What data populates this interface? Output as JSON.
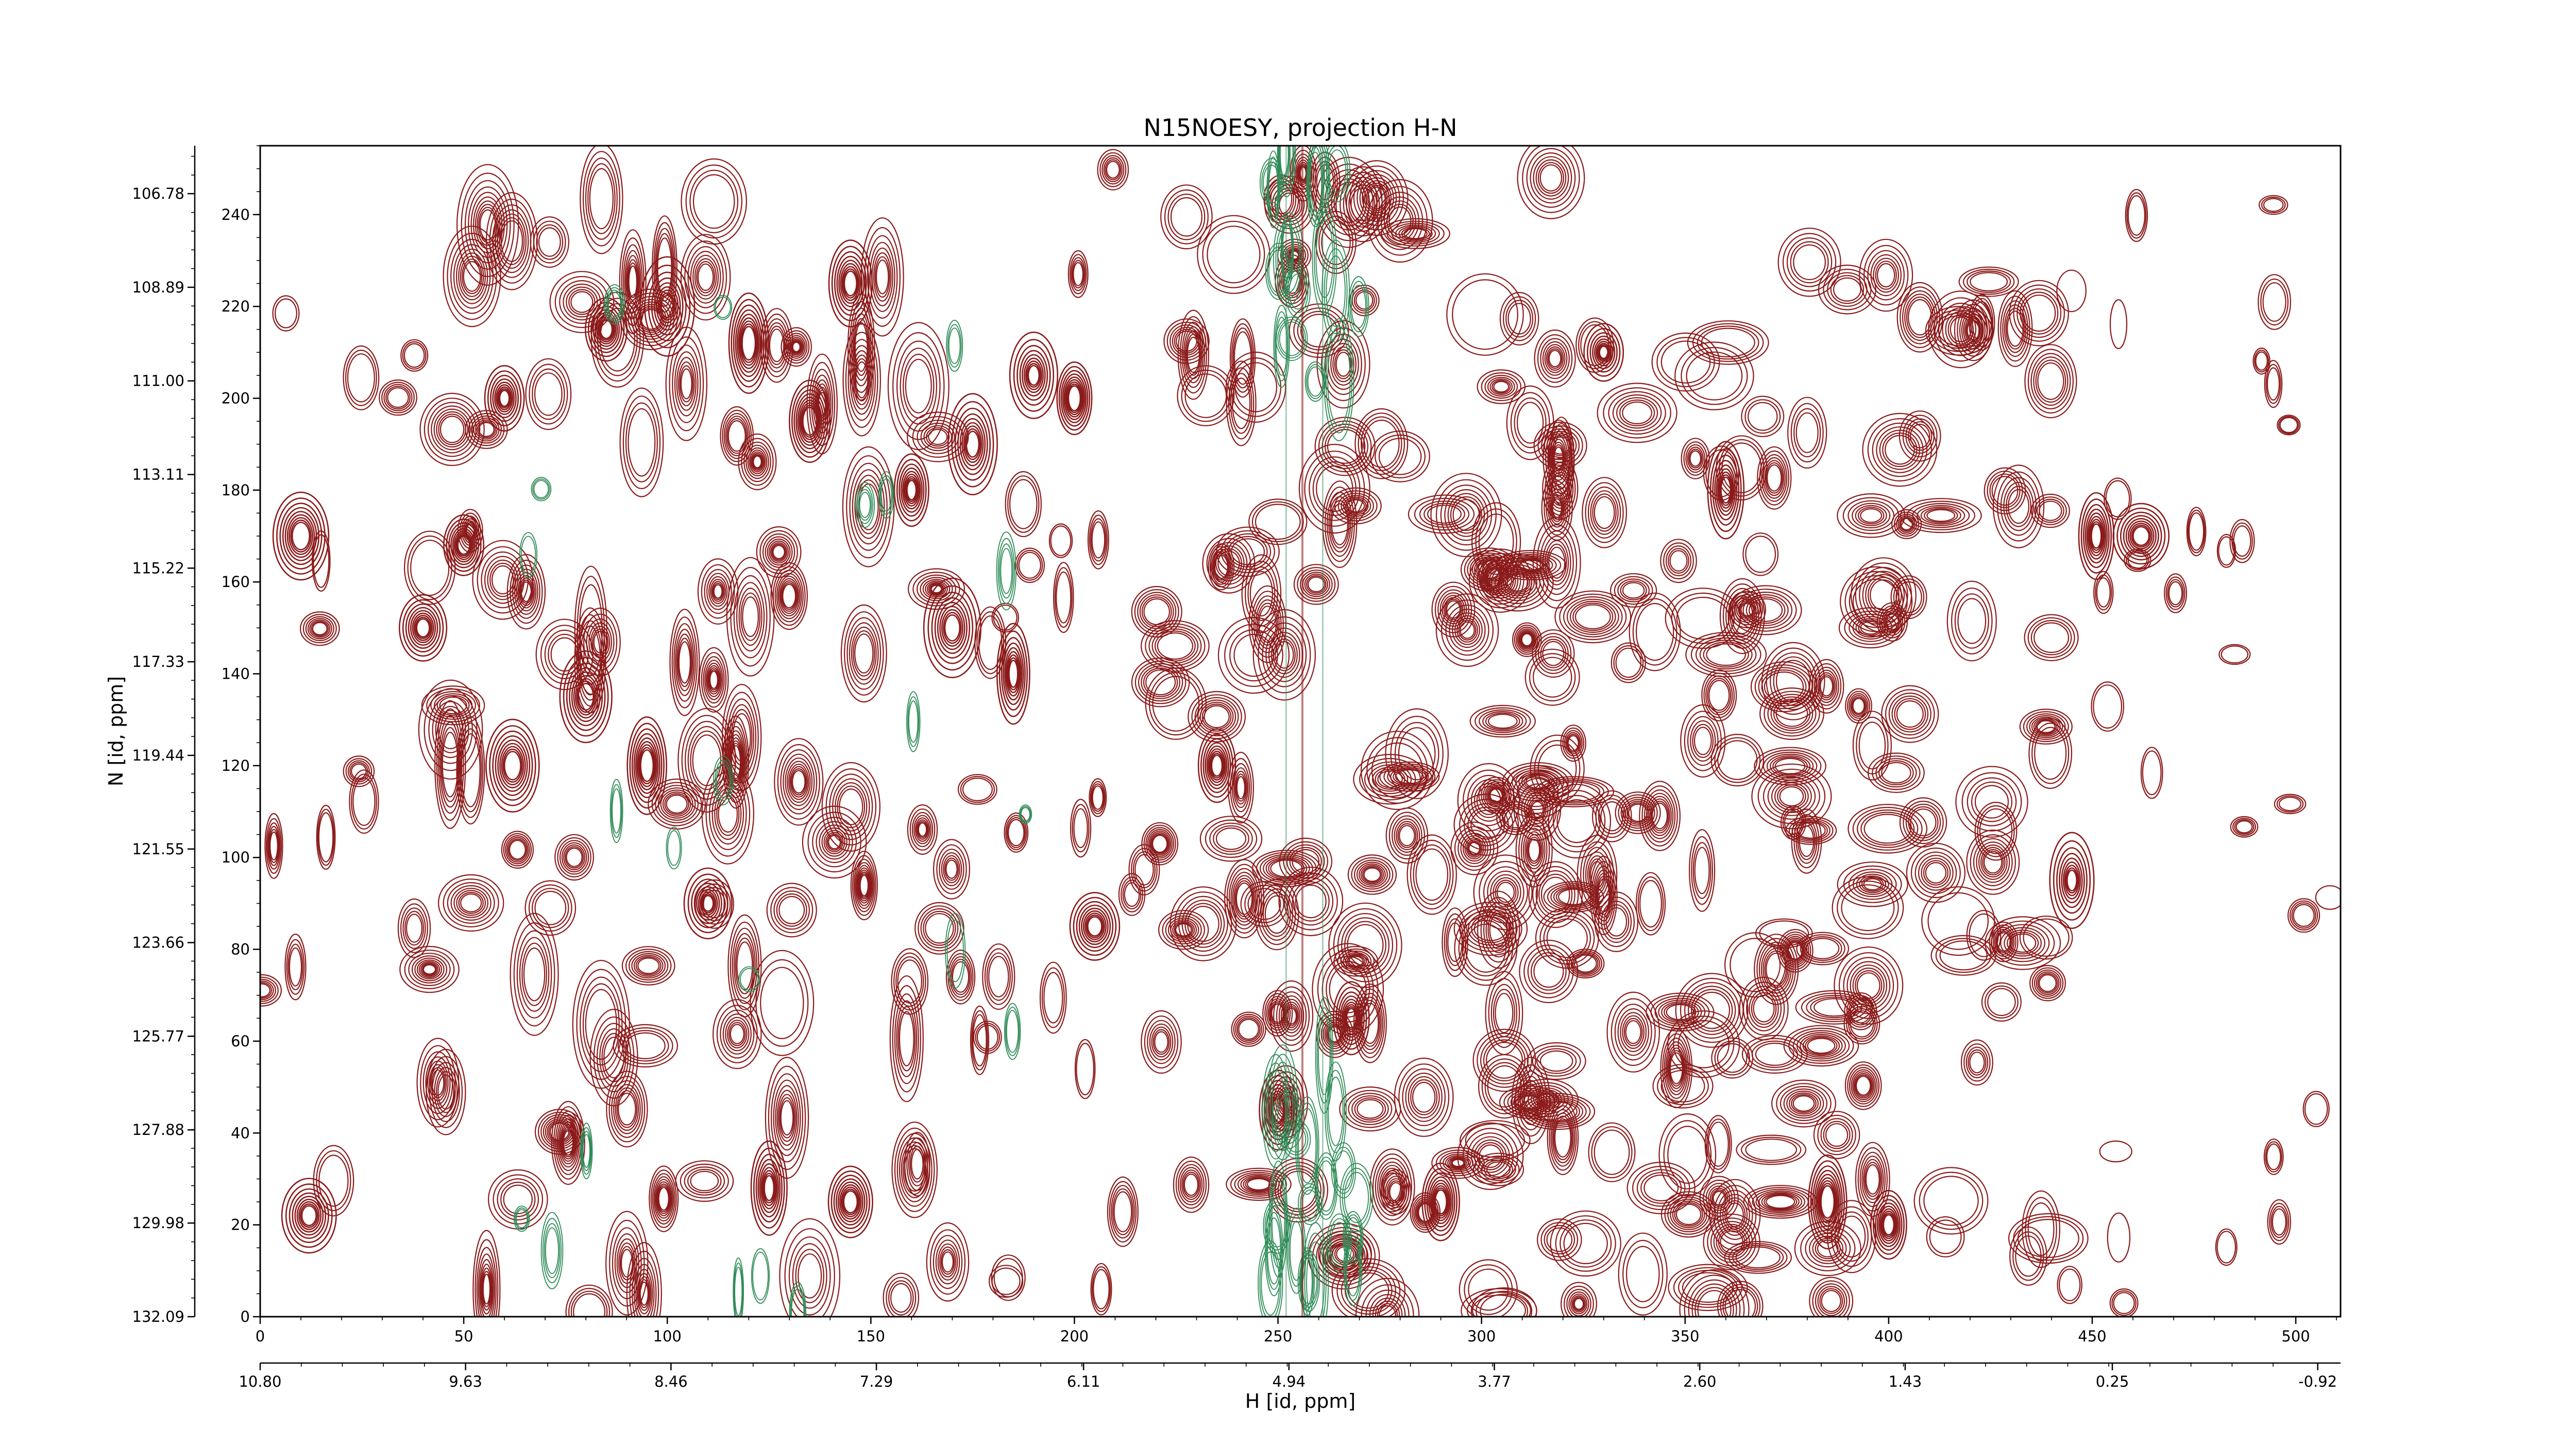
{
  "chart_data": {
    "type": "contour",
    "title": "N15NOESY, projection H-N",
    "xlabel": "H [id, ppm]",
    "ylabel": "N [id, ppm]",
    "x_index_axis": {
      "range": [
        0,
        511
      ],
      "ticks": [
        "0",
        "50",
        "100",
        "150",
        "200",
        "250",
        "300",
        "350",
        "400",
        "450",
        "500"
      ]
    },
    "x_ppm_axis": {
      "range": [
        10.8,
        -1.05
      ],
      "ticks": [
        "10.80",
        "9.63",
        "8.46",
        "7.29",
        "6.11",
        "4.94",
        "3.77",
        "2.60",
        "1.43",
        "0.25",
        "-0.92"
      ]
    },
    "y_index_axis": {
      "range": [
        0,
        255
      ],
      "ticks": [
        "0",
        "20",
        "40",
        "60",
        "80",
        "100",
        "120",
        "140",
        "160",
        "180",
        "200",
        "220",
        "240"
      ]
    },
    "y_ppm_axis": {
      "range": [
        132.09,
        105.7
      ],
      "ticks": [
        "132.09",
        "129.98",
        "127.88",
        "125.77",
        "123.66",
        "121.55",
        "119.44",
        "117.33",
        "115.22",
        "113.11",
        "111.00",
        "108.89",
        "106.78"
      ]
    },
    "colors": {
      "positive_contours": "#8b1a1a",
      "negative_contours": "#2e8b57",
      "axis": "#000000"
    },
    "grid": false,
    "legend": "none"
  }
}
